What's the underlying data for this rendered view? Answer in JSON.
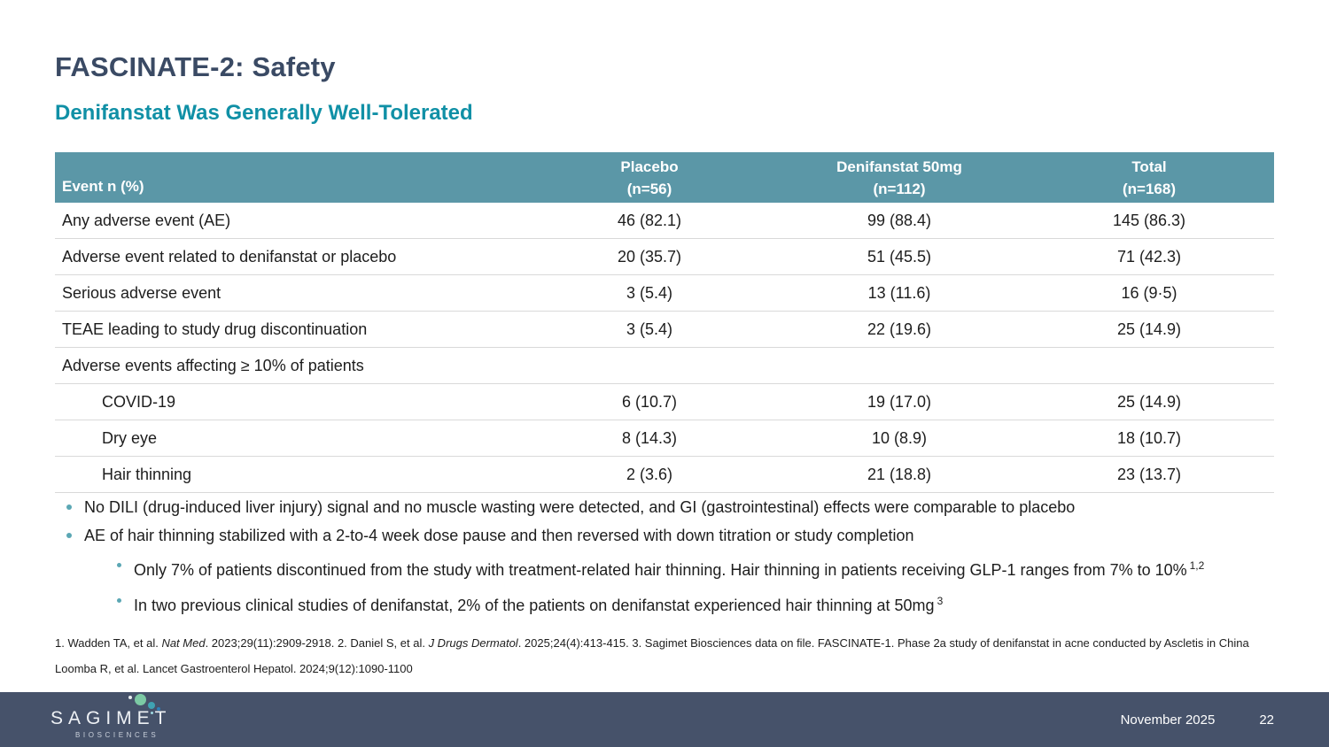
{
  "slide": {
    "title": "FASCINATE-2: Safety",
    "subtitle": "Denifanstat Was Generally Well-Tolerated"
  },
  "table": {
    "header": {
      "event_label": "Event n (%)",
      "columns": [
        {
          "title": "Placebo",
          "n": "(n=56)"
        },
        {
          "title": "Denifanstat 50mg",
          "n": "(n=112)"
        },
        {
          "title": "Total",
          "n": "(n=168)"
        }
      ]
    },
    "rows": [
      {
        "label": "Any adverse event (AE)",
        "placebo": "46 (82.1)",
        "denifanstat": "99 (88.4)",
        "total": "145 (86.3)"
      },
      {
        "label": "Adverse event related to denifanstat or placebo",
        "placebo": "20 (35.7)",
        "denifanstat": "51 (45.5)",
        "total": "71 (42.3)"
      },
      {
        "label": "Serious adverse event",
        "placebo": "3 (5.4)",
        "denifanstat": "13 (11.6)",
        "total": "16 (9·5)"
      },
      {
        "label": "TEAE leading to study drug discontinuation",
        "placebo": "3 (5.4)",
        "denifanstat": "22 (19.6)",
        "total": "25 (14.9)"
      },
      {
        "label": "Adverse events affecting ≥ 10% of patients",
        "placebo": "",
        "denifanstat": "",
        "total": ""
      },
      {
        "label": "COVID-19",
        "placebo": "6 (10.7)",
        "denifanstat": "19 (17.0)",
        "total": "25 (14.9)"
      },
      {
        "label": "Dry eye",
        "placebo": "8 (14.3)",
        "denifanstat": "10 (8.9)",
        "total": "18 (10.7)"
      },
      {
        "label": "Hair thinning",
        "placebo": "2 (3.6)",
        "denifanstat": "21 (18.8)",
        "total": "23 (13.7)"
      }
    ]
  },
  "bullets": {
    "level1": [
      "No DILI (drug-induced liver injury) signal and no muscle wasting were detected, and GI (gastrointestinal) effects were comparable to placebo",
      "AE of hair thinning stabilized with a 2-to-4 week dose pause and then reversed with down titration or study completion"
    ],
    "level2": [
      {
        "text": "Only 7% of patients discontinued from the study with treatment-related hair thinning. Hair thinning in patients receiving GLP-1 ranges from 7% to 10%",
        "superscript": "1,2"
      },
      {
        "text": "In two previous clinical studies of denifanstat, 2% of the patients on denifanstat experienced hair thinning at 50mg",
        "superscript": "3"
      }
    ]
  },
  "footnotes": {
    "line1": {
      "part1": "1. Wadden TA, et al. ",
      "italic1": "Nat Med",
      "part2": ". 2023;29(11):2909-2918. 2. Daniel S, et al. ",
      "italic2": "J Drugs Dermatol",
      "part3": ". 2025;24(4):413-415. 3. Sagimet Biosciences data on file. FASCINATE-1. Phase 2a study of denifanstat in acne conducted by Ascletis in China"
    },
    "line2": "Loomba R, et al. Lancet Gastroenterol Hepatol. 2024;9(12):1090-1100"
  },
  "footer": {
    "logo_main": "SAGIMET",
    "logo_sub": "BIOSCIENCES",
    "date": "November 2025",
    "page_number": "22"
  },
  "colors": {
    "title": "#3a4a64",
    "subtitle": "#1090a6",
    "table_header_bg": "#5b97a7",
    "table_border": "#d9d9d9",
    "bullet_marker": "#5ba7b4",
    "footer_bg": "#46526a",
    "logo_dot_green": "#7cc9a4",
    "logo_dot_teal": "#3fa3b3",
    "logo_dot_blue": "#2f7fb8"
  }
}
